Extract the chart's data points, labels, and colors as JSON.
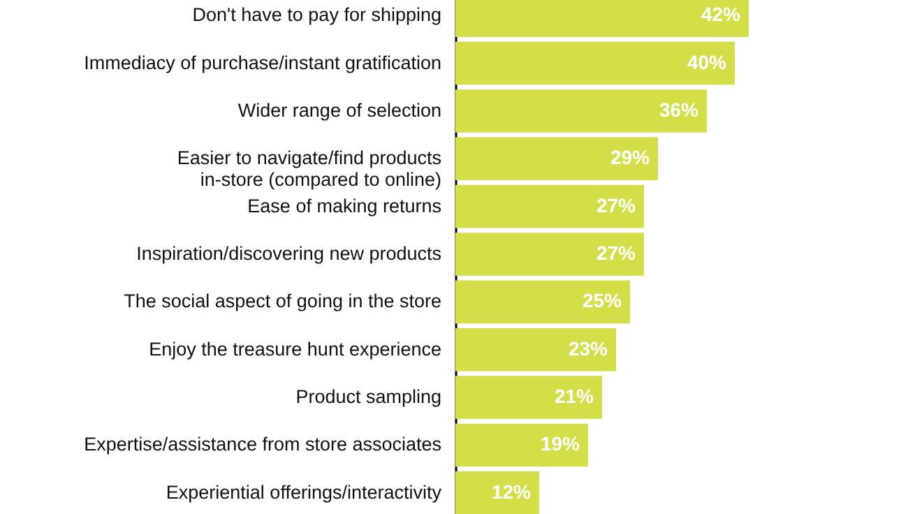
{
  "chart_data": {
    "type": "bar",
    "orientation": "horizontal",
    "categories": [
      "Don't have to pay for shipping",
      "Immediacy of purchase/instant gratification",
      "Wider range of selection",
      "Easier to navigate/find products in-store (compared to online)",
      "Ease of making returns",
      "Inspiration/discovering new products",
      "The social aspect of going in the store",
      "Enjoy the treasure hunt experience",
      "Product sampling",
      "Expertise/assistance from store associates",
      "Experiential offerings/interactivity"
    ],
    "values": [
      42,
      40,
      36,
      29,
      27,
      27,
      25,
      23,
      21,
      19,
      12
    ],
    "value_labels": [
      "42%",
      "40%",
      "36%",
      "29%",
      "27%",
      "27%",
      "25%",
      "23%",
      "21%",
      "19%",
      "12%"
    ],
    "color": "#d4de48"
  }
}
